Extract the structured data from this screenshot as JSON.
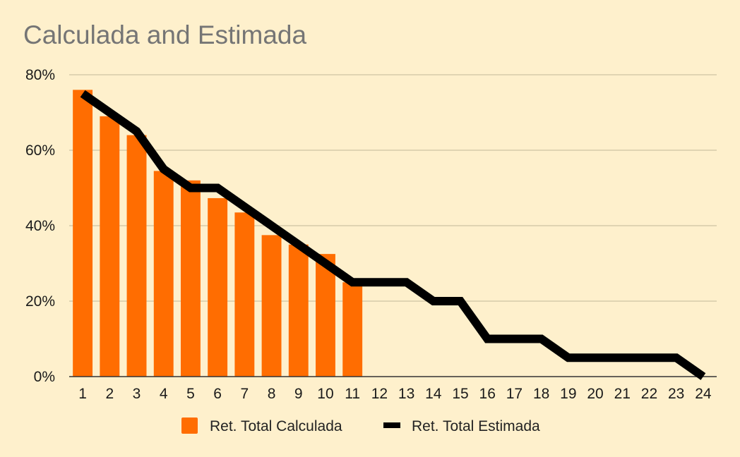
{
  "chart_data": {
    "type": "bar",
    "title": "Calculada and Estimada",
    "xlabel": "",
    "ylabel": "",
    "categories": [
      "1",
      "2",
      "3",
      "4",
      "5",
      "6",
      "7",
      "8",
      "9",
      "10",
      "11",
      "12",
      "13",
      "14",
      "15",
      "16",
      "17",
      "18",
      "19",
      "20",
      "21",
      "22",
      "23",
      "24"
    ],
    "ylim": [
      0,
      80
    ],
    "y_ticks": [
      0,
      20,
      40,
      60,
      80
    ],
    "y_tick_labels": [
      "0%",
      "20%",
      "40%",
      "60%",
      "80%"
    ],
    "grid": true,
    "legend_position": "bottom",
    "series": [
      {
        "name": "Ret. Total Calculada",
        "type": "bar",
        "color": "#ff6d01",
        "values": [
          76,
          69,
          64,
          54.5,
          52,
          47.3,
          43.5,
          37.5,
          35,
          32.5,
          25,
          null,
          null,
          null,
          null,
          null,
          null,
          null,
          null,
          null,
          null,
          null,
          null,
          null
        ]
      },
      {
        "name": "Ret. Total Estimada",
        "type": "line",
        "color": "#000000",
        "values": [
          75,
          70,
          65,
          55,
          50,
          50,
          45,
          40,
          35,
          30,
          25,
          25,
          25,
          20,
          20,
          10,
          10,
          10,
          5,
          5,
          5,
          5,
          5,
          0
        ]
      }
    ]
  }
}
